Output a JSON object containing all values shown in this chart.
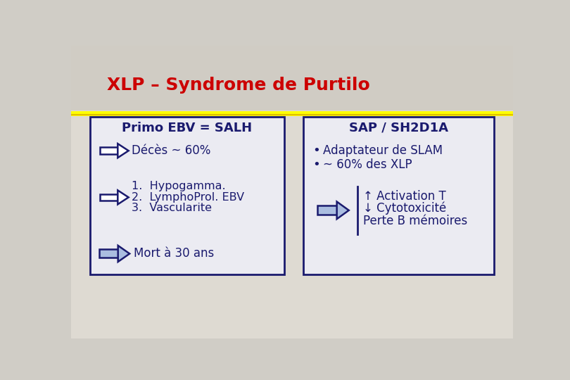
{
  "title": "XLP – Syndrome de Purtilo",
  "title_color": "#cc0000",
  "title_fontsize": 18,
  "bg_color_top": "#d0cdc6",
  "bg_color_bottom": "#e8e6e0",
  "box_bg": "#eeeef4",
  "box_border_color": "#1a1a6e",
  "separator_line_color": "#ffff00",
  "text_color": "#1a1a6e",
  "arrow_fill": "#aabde0",
  "arrow_border": "#1a1a6e",
  "left_box": {
    "header": "Primo EBV = SALH",
    "decès_text": "Décès ~ 60%",
    "list_items": [
      "1.  Hypogamma.",
      "2.  LymphoProl. EBV",
      "3.  Vascularite"
    ],
    "mort_text": "Mort à 30 ans"
  },
  "right_box": {
    "header": "SAP / SH2D1A",
    "bullet_items": [
      "Adaptateur de SLAM",
      "~ 60% des XLP"
    ],
    "arrow_lines": [
      "↑ Activation T",
      "↓ Cytotoxicité",
      "Perte B mémoires"
    ]
  }
}
